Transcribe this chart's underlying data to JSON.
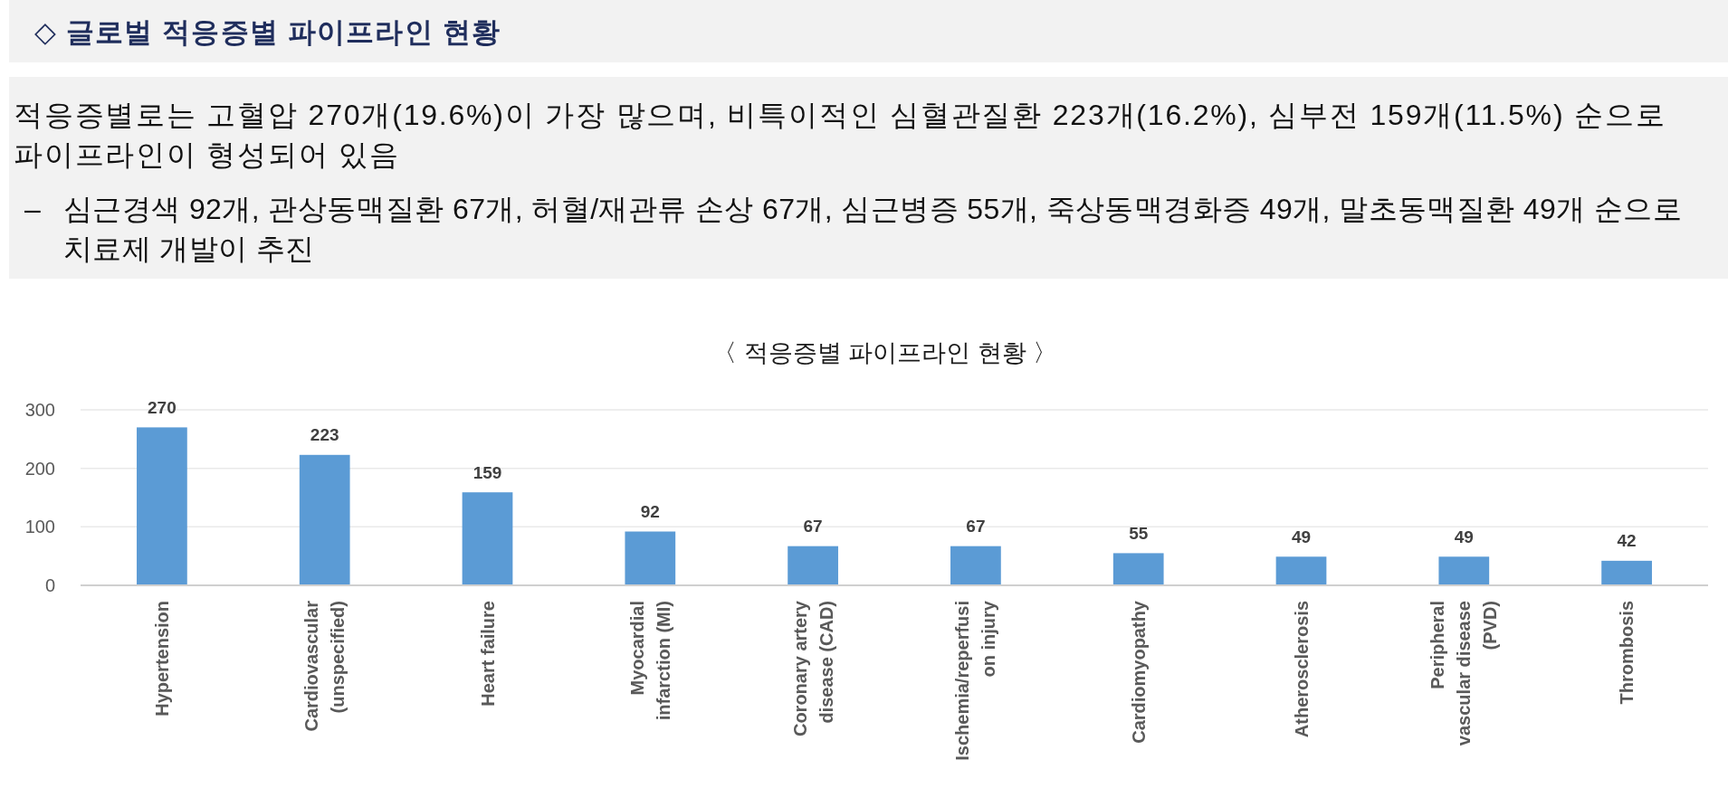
{
  "chart_data": {
    "type": "bar",
    "title": "◇ 글로벌 적응증별 파이프라인 현황",
    "subtitle": "〈 적응증별 파이프라인 현황 〉",
    "annotations": [
      "적응증별로는 고혈압 270개(19.6%)이 가장 많으며, 비특이적인 심혈관질환 223개(16.2%), 심부전 159개(11.5%) 순으로\n파이프라인이 형성되어 있음",
      "– 심근경색 92개, 관상동맥질환 67개, 허혈/재관류 손상 67개, 심근병증 55개, 죽상동맥경화증 49개, 말초동맥질환 49개 순으로\n치료제 개발이 추진"
    ],
    "categories": [
      "Hypertension",
      "Cardiovascular\n(unspecified)",
      "Heart failure",
      "Myocardial\ninfarction (MI)",
      "Coronary artery\ndisease (CAD)",
      "Ischemia/reperfusi\non injury",
      "Cardiomyopathy",
      "Atherosclerosis",
      "Peripheral\nvascular disease\n(PVD)",
      "Thrombosis"
    ],
    "values": [
      270,
      223,
      159,
      92,
      67,
      67,
      55,
      49,
      49,
      42
    ],
    "color": "#5b9bd5",
    "ylim": [
      0,
      300
    ],
    "yticks": [
      0,
      100,
      200,
      300
    ],
    "grid": "y",
    "data_labels": true
  }
}
